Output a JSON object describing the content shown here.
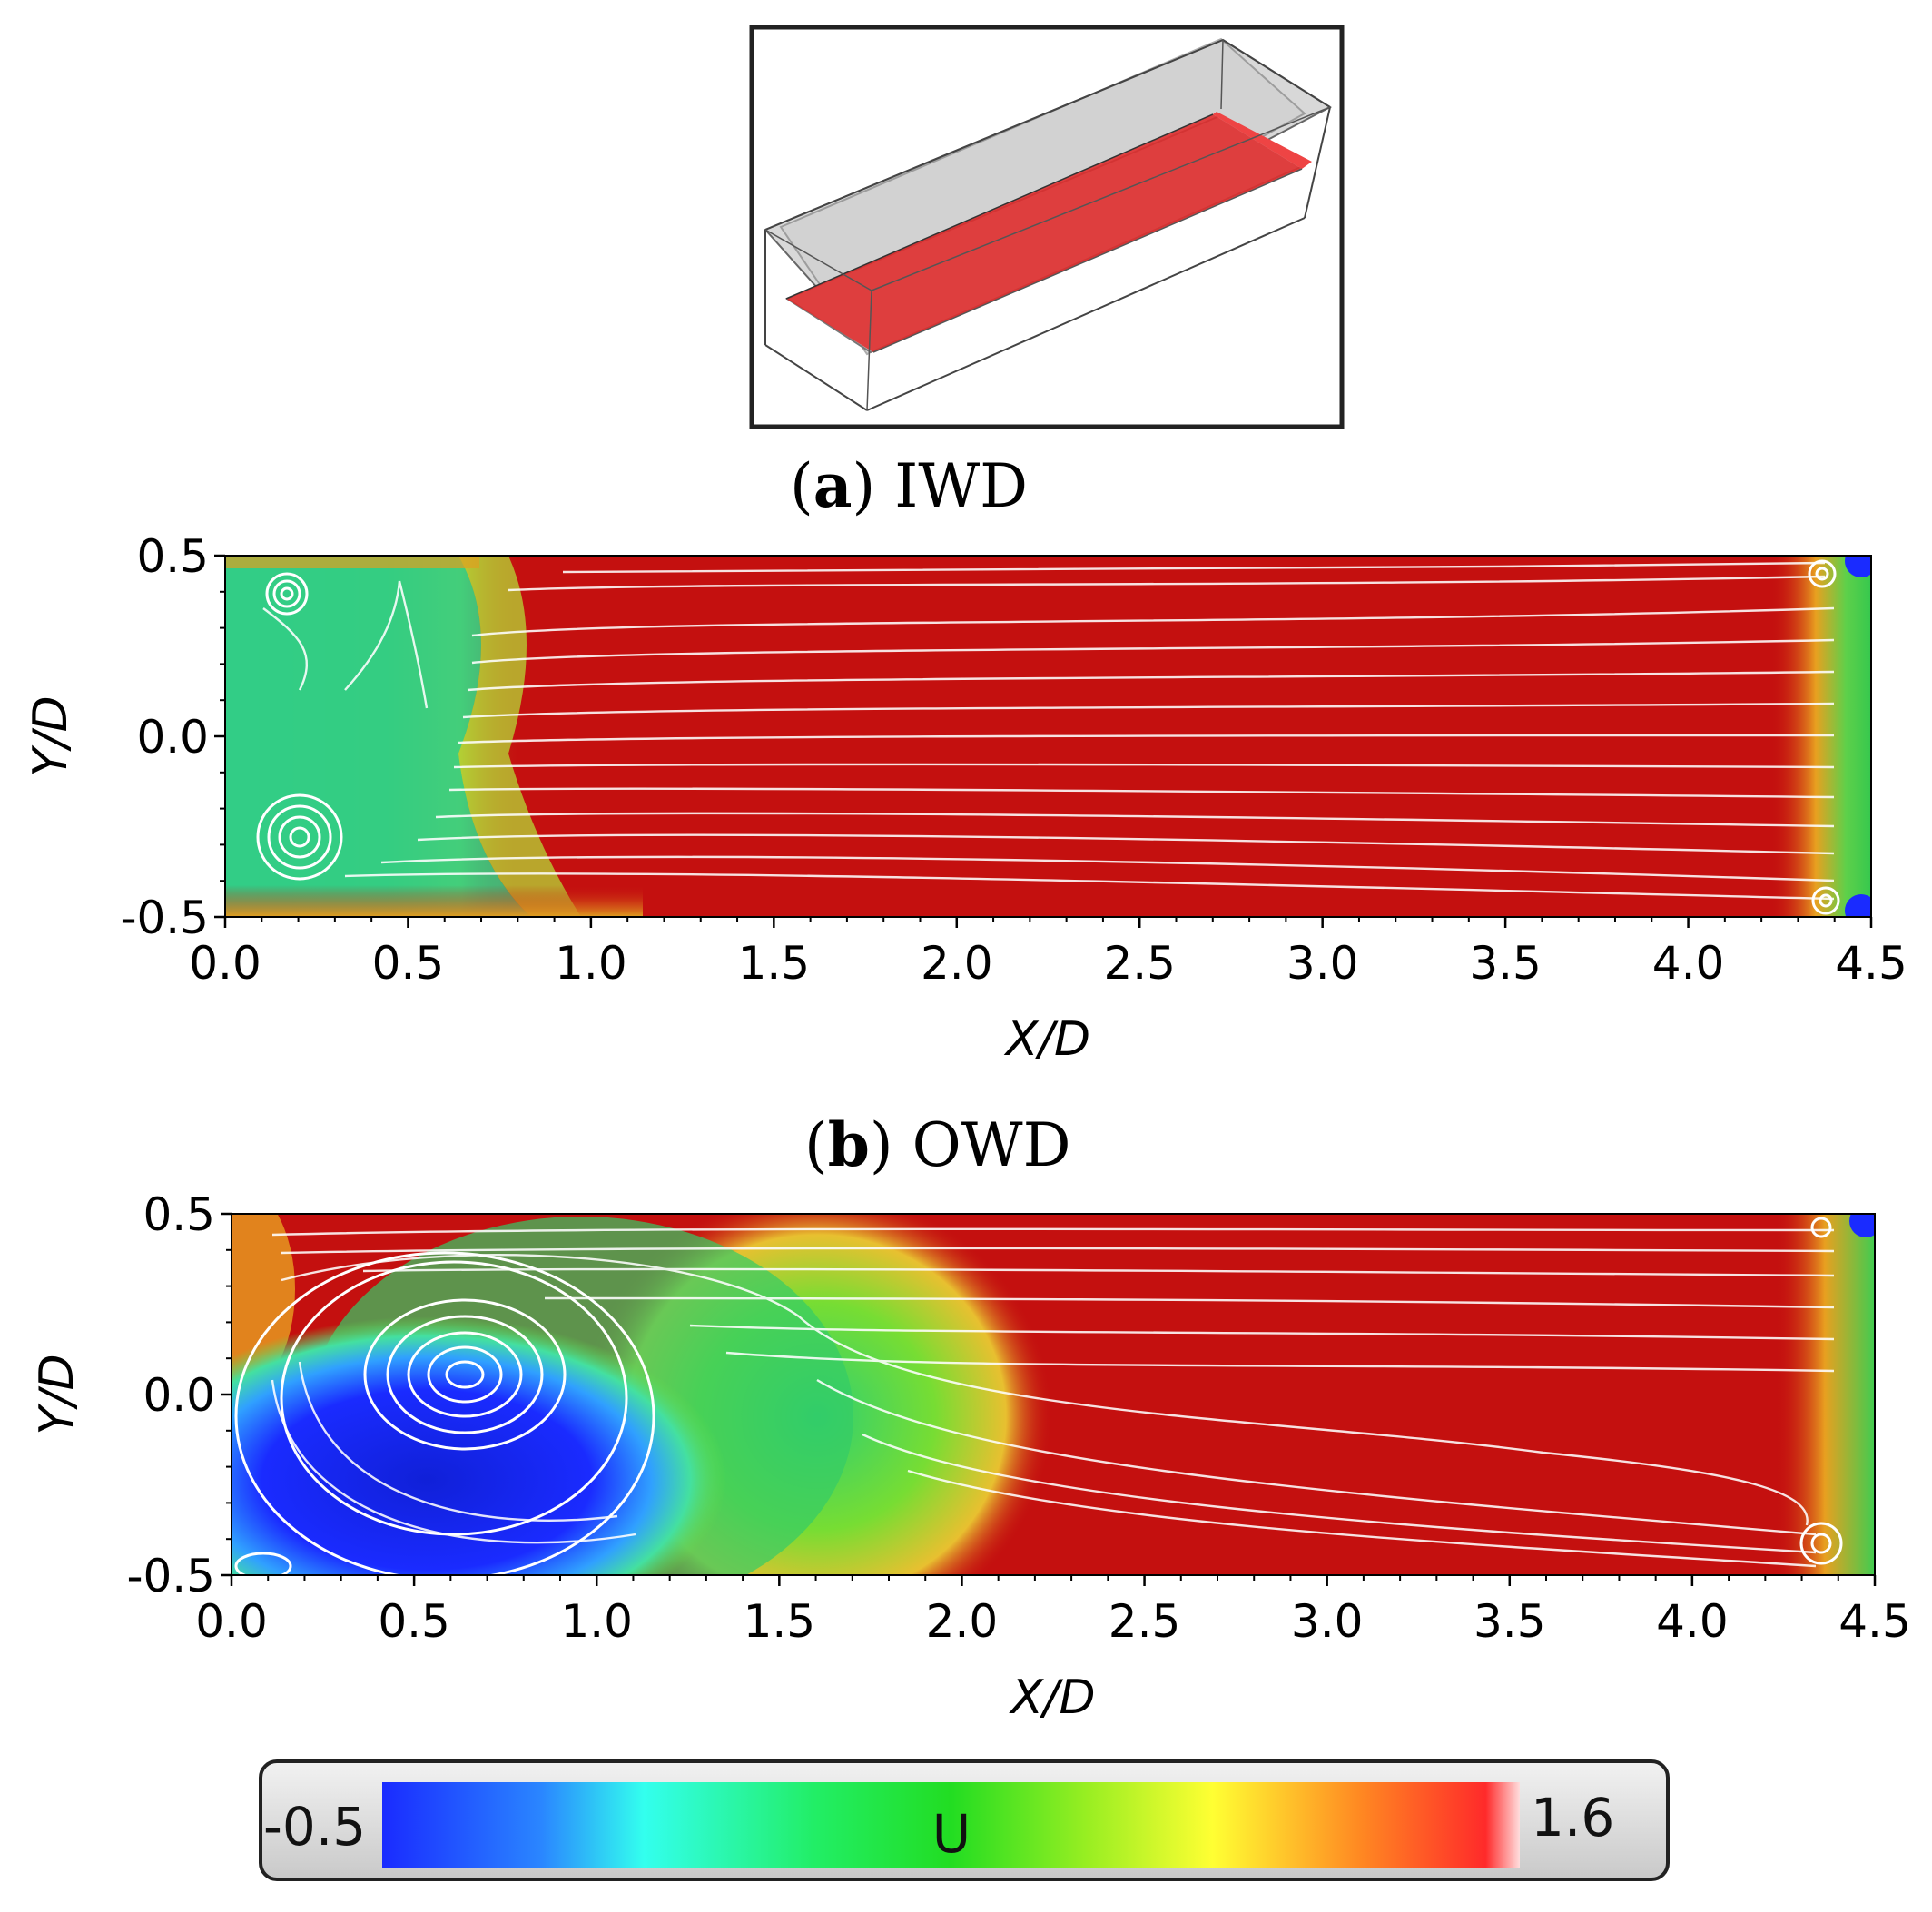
{
  "inset": {
    "icon": "channel-box-with-red-midplane-icon"
  },
  "captions": {
    "a": {
      "letter": "a",
      "name": "IWD"
    },
    "b": {
      "letter": "b",
      "name": "OWD"
    }
  },
  "colorbar": {
    "min_label": "-0.5",
    "max_label": "1.6",
    "variable": "U",
    "colormap": [
      "#1a2bff",
      "#2a86ff",
      "#33ffee",
      "#22ee55",
      "#66dd11",
      "#ffff33",
      "#ff9922",
      "#ff2a2a",
      "#ee1111"
    ]
  },
  "chart_data": [
    {
      "type": "heatmap",
      "panel": "a",
      "title": "IWD",
      "xlabel": "X/D",
      "ylabel": "Y/D",
      "xlim": [
        0.0,
        4.5
      ],
      "ylim": [
        -0.5,
        0.5
      ],
      "xticks": [
        "0.0",
        "0.5",
        "1.0",
        "1.5",
        "2.0",
        "2.5",
        "3.0",
        "3.5",
        "4.0",
        "4.5"
      ],
      "xtick_values": [
        0.0,
        0.5,
        1.0,
        1.5,
        2.0,
        2.5,
        3.0,
        3.5,
        4.0,
        4.5
      ],
      "yticks": [
        "0.5",
        "0.0",
        "-0.5"
      ],
      "ytick_values": [
        0.5,
        0.0,
        -0.5
      ],
      "field": "U",
      "vortices": [
        {
          "x": 0.18,
          "y": 0.38
        },
        {
          "x": 0.28,
          "y": -0.26
        },
        {
          "x": 4.36,
          "y": 0.44
        },
        {
          "x": 4.38,
          "y": -0.46
        }
      ]
    },
    {
      "type": "heatmap",
      "panel": "b",
      "title": "OWD",
      "xlabel": "X/D",
      "ylabel": "Y/D",
      "xlim": [
        0.0,
        4.5
      ],
      "ylim": [
        -0.5,
        0.5
      ],
      "xticks": [
        "0.0",
        "0.5",
        "1.0",
        "1.5",
        "2.0",
        "2.5",
        "3.0",
        "3.5",
        "4.0",
        "4.5"
      ],
      "xtick_values": [
        0.0,
        0.5,
        1.0,
        1.5,
        2.0,
        2.5,
        3.0,
        3.5,
        4.0,
        4.5
      ],
      "yticks": [
        "0.5",
        "0.0",
        "-0.5"
      ],
      "ytick_values": [
        0.5,
        0.0,
        -0.5
      ],
      "field": "U",
      "vortices": [
        {
          "x": 0.62,
          "y": 0.07
        },
        {
          "x": 0.08,
          "y": -0.45
        },
        {
          "x": 4.3,
          "y": 0.44
        },
        {
          "x": 4.3,
          "y": -0.43
        }
      ]
    }
  ]
}
